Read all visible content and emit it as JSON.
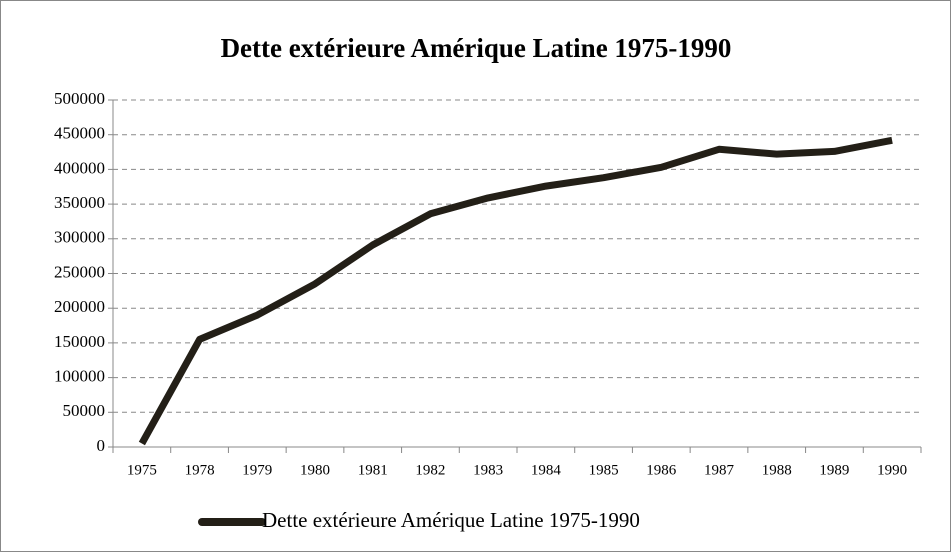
{
  "chart_data": {
    "type": "line",
    "title": "Dette extérieure Amérique Latine 1975-1990",
    "categories": [
      "1975",
      "1978",
      "1979",
      "1980",
      "1981",
      "1982",
      "1983",
      "1984",
      "1985",
      "1986",
      "1987",
      "1988",
      "1989",
      "1990"
    ],
    "series": [
      {
        "name": "Dette extérieure Amérique Latine 1975-1990",
        "color": "#231f17",
        "values": [
          5000,
          155000,
          190000,
          235000,
          291000,
          336000,
          359000,
          376000,
          388000,
          403000,
          429000,
          422000,
          426000,
          442000
        ]
      }
    ],
    "ylim": [
      0,
      500000
    ],
    "yticks": [
      0,
      50000,
      100000,
      150000,
      200000,
      250000,
      300000,
      350000,
      400000,
      450000,
      500000
    ],
    "grid": true,
    "legend": "bottom"
  }
}
